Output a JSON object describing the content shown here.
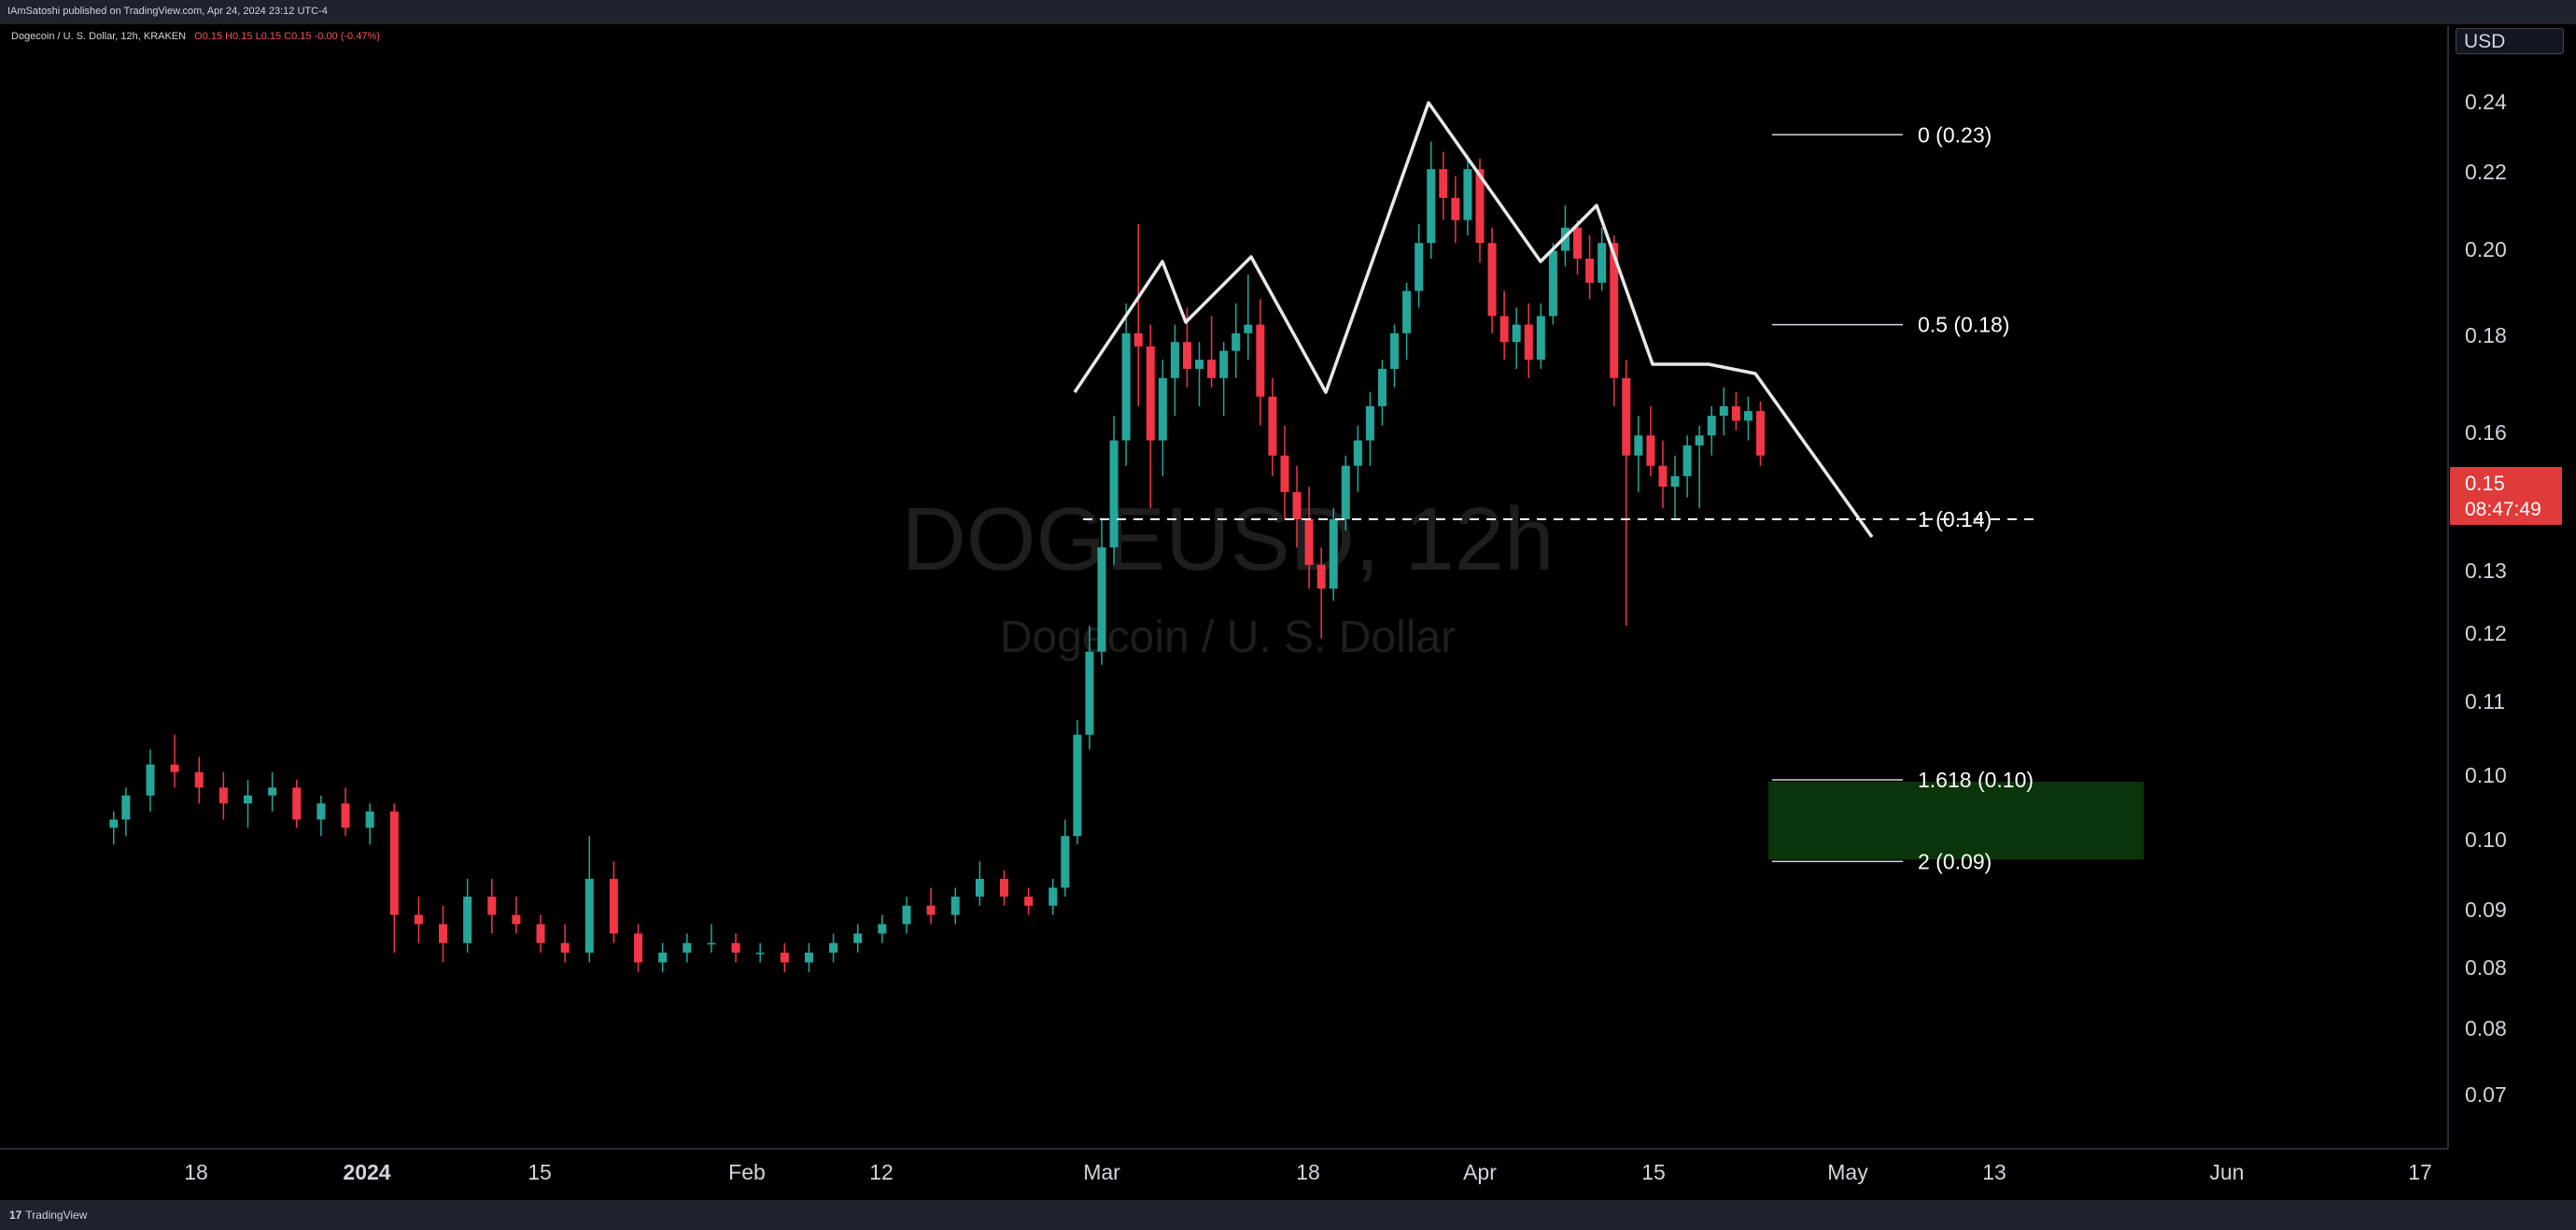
{
  "header": {
    "published": "IAmSatoshi published on TradingView.com, Apr 24, 2024 23:12 UTC-4",
    "symbol_line": "Dogecoin / U. S. Dollar, 12h, KRAKEN",
    "ohlc": "O0.15 H0.15 L0.15 C0.15 -0.00 (-0.47%)"
  },
  "watermark": {
    "line1": "DOGEUSD, 12h",
    "line2": "Dogecoin / U. S. Dollar"
  },
  "price_axis": {
    "currency": "USD",
    "current_price": "0.15",
    "countdown": "08:47:49"
  },
  "footer": {
    "brand": "TradingView",
    "logo": "17"
  },
  "colors": {
    "background": "#000000",
    "up": "#26a69a",
    "down": "#f23645",
    "fib_zone": "#0b3a0b",
    "price_tag": "#e03a3a"
  },
  "chart_data": {
    "type": "candlestick",
    "x_tick_labels": [
      "18",
      "2024",
      "15",
      "Feb",
      "12",
      "Mar",
      "18",
      "Apr",
      "15",
      "May",
      "13",
      "Jun",
      "17"
    ],
    "y_tick_labels": [
      "0.24",
      "0.22",
      "0.20",
      "0.18",
      "0.16",
      "0.15",
      "0.13",
      "0.12",
      "0.11",
      "0.10",
      "0.10",
      "0.09",
      "0.08",
      "0.08",
      "0.07"
    ],
    "y_scale": "log",
    "ylim": [
      0.065,
      0.255
    ],
    "series": [
      {
        "name": "DOGEUSD",
        "candles": [
          [
            "2023-12-11",
            0.094,
            0.096,
            0.092,
            0.095
          ],
          [
            "2023-12-12",
            0.095,
            0.099,
            0.093,
            0.098
          ],
          [
            "2023-12-14",
            0.098,
            0.104,
            0.096,
            0.102
          ],
          [
            "2023-12-16",
            0.102,
            0.106,
            0.099,
            0.101
          ],
          [
            "2023-12-18",
            0.101,
            0.103,
            0.097,
            0.099
          ],
          [
            "2023-12-20",
            0.099,
            0.101,
            0.095,
            0.097
          ],
          [
            "2023-12-22",
            0.097,
            0.1,
            0.094,
            0.098
          ],
          [
            "2023-12-24",
            0.098,
            0.101,
            0.096,
            0.099
          ],
          [
            "2023-12-26",
            0.099,
            0.1,
            0.094,
            0.095
          ],
          [
            "2023-12-28",
            0.095,
            0.098,
            0.093,
            0.097
          ],
          [
            "2023-12-30",
            0.097,
            0.099,
            0.093,
            0.094
          ],
          [
            "2024-01-01",
            0.094,
            0.097,
            0.092,
            0.096
          ],
          [
            "2024-01-03",
            0.096,
            0.097,
            0.08,
            0.084
          ],
          [
            "2024-01-05",
            0.084,
            0.086,
            0.081,
            0.083
          ],
          [
            "2024-01-07",
            0.083,
            0.085,
            0.079,
            0.081
          ],
          [
            "2024-01-09",
            0.081,
            0.088,
            0.08,
            0.086
          ],
          [
            "2024-01-11",
            0.086,
            0.088,
            0.082,
            0.084
          ],
          [
            "2024-01-13",
            0.084,
            0.086,
            0.082,
            0.083
          ],
          [
            "2024-01-15",
            0.083,
            0.084,
            0.08,
            0.081
          ],
          [
            "2024-01-17",
            0.081,
            0.083,
            0.079,
            0.08
          ],
          [
            "2024-01-19",
            0.08,
            0.093,
            0.079,
            0.088
          ],
          [
            "2024-01-21",
            0.088,
            0.09,
            0.081,
            0.082
          ],
          [
            "2024-01-23",
            0.082,
            0.083,
            0.078,
            0.079
          ],
          [
            "2024-01-25",
            0.079,
            0.081,
            0.078,
            0.08
          ],
          [
            "2024-01-27",
            0.08,
            0.082,
            0.079,
            0.081
          ],
          [
            "2024-01-29",
            0.081,
            0.083,
            0.08,
            0.081
          ],
          [
            "2024-01-31",
            0.081,
            0.082,
            0.079,
            0.08
          ],
          [
            "2024-02-02",
            0.08,
            0.081,
            0.079,
            0.08
          ],
          [
            "2024-02-04",
            0.08,
            0.081,
            0.078,
            0.079
          ],
          [
            "2024-02-06",
            0.079,
            0.081,
            0.078,
            0.08
          ],
          [
            "2024-02-08",
            0.08,
            0.082,
            0.079,
            0.081
          ],
          [
            "2024-02-10",
            0.081,
            0.083,
            0.08,
            0.082
          ],
          [
            "2024-02-12",
            0.082,
            0.084,
            0.081,
            0.083
          ],
          [
            "2024-02-14",
            0.083,
            0.086,
            0.082,
            0.085
          ],
          [
            "2024-02-16",
            0.085,
            0.087,
            0.083,
            0.084
          ],
          [
            "2024-02-18",
            0.084,
            0.087,
            0.083,
            0.086
          ],
          [
            "2024-02-20",
            0.086,
            0.09,
            0.085,
            0.088
          ],
          [
            "2024-02-22",
            0.088,
            0.089,
            0.085,
            0.086
          ],
          [
            "2024-02-24",
            0.086,
            0.087,
            0.084,
            0.085
          ],
          [
            "2024-02-26",
            0.085,
            0.088,
            0.084,
            0.087
          ],
          [
            "2024-02-27",
            0.087,
            0.095,
            0.086,
            0.093
          ],
          [
            "2024-02-28",
            0.093,
            0.108,
            0.092,
            0.106
          ],
          [
            "2024-02-29",
            0.106,
            0.122,
            0.104,
            0.118
          ],
          [
            "2024-03-01",
            0.118,
            0.14,
            0.116,
            0.135
          ],
          [
            "2024-03-02",
            0.135,
            0.16,
            0.132,
            0.155
          ],
          [
            "2024-03-03",
            0.155,
            0.185,
            0.15,
            0.178
          ],
          [
            "2024-03-04",
            0.178,
            0.205,
            0.162,
            0.175
          ],
          [
            "2024-03-05",
            0.175,
            0.18,
            0.142,
            0.155
          ],
          [
            "2024-03-06",
            0.155,
            0.172,
            0.148,
            0.168
          ],
          [
            "2024-03-07",
            0.168,
            0.18,
            0.16,
            0.176
          ],
          [
            "2024-03-08",
            0.176,
            0.184,
            0.166,
            0.17
          ],
          [
            "2024-03-09",
            0.17,
            0.176,
            0.162,
            0.172
          ],
          [
            "2024-03-10",
            0.172,
            0.182,
            0.166,
            0.168
          ],
          [
            "2024-03-11",
            0.168,
            0.176,
            0.16,
            0.174
          ],
          [
            "2024-03-12",
            0.174,
            0.185,
            0.168,
            0.178
          ],
          [
            "2024-03-13",
            0.178,
            0.192,
            0.172,
            0.18
          ],
          [
            "2024-03-14",
            0.18,
            0.186,
            0.158,
            0.164
          ],
          [
            "2024-03-15",
            0.164,
            0.168,
            0.148,
            0.152
          ],
          [
            "2024-03-16",
            0.152,
            0.158,
            0.14,
            0.145
          ],
          [
            "2024-03-17",
            0.145,
            0.15,
            0.135,
            0.14
          ],
          [
            "2024-03-18",
            0.14,
            0.146,
            0.128,
            0.132
          ],
          [
            "2024-03-19",
            0.132,
            0.135,
            0.12,
            0.128
          ],
          [
            "2024-03-20",
            0.128,
            0.142,
            0.126,
            0.14
          ],
          [
            "2024-03-21",
            0.14,
            0.152,
            0.138,
            0.15
          ],
          [
            "2024-03-22",
            0.15,
            0.158,
            0.145,
            0.155
          ],
          [
            "2024-03-23",
            0.155,
            0.165,
            0.15,
            0.162
          ],
          [
            "2024-03-24",
            0.162,
            0.172,
            0.158,
            0.17
          ],
          [
            "2024-03-25",
            0.17,
            0.18,
            0.166,
            0.178
          ],
          [
            "2024-03-26",
            0.178,
            0.19,
            0.172,
            0.188
          ],
          [
            "2024-03-27",
            0.188,
            0.205,
            0.184,
            0.2
          ],
          [
            "2024-03-28",
            0.2,
            0.228,
            0.196,
            0.22
          ],
          [
            "2024-03-29",
            0.22,
            0.225,
            0.206,
            0.212
          ],
          [
            "2024-03-30",
            0.212,
            0.218,
            0.2,
            0.206
          ],
          [
            "2024-03-31",
            0.206,
            0.224,
            0.202,
            0.22
          ],
          [
            "2024-04-01",
            0.22,
            0.223,
            0.195,
            0.2
          ],
          [
            "2024-04-02",
            0.2,
            0.204,
            0.178,
            0.182
          ],
          [
            "2024-04-03",
            0.182,
            0.188,
            0.172,
            0.176
          ],
          [
            "2024-04-04",
            0.176,
            0.184,
            0.17,
            0.18
          ],
          [
            "2024-04-05",
            0.18,
            0.185,
            0.168,
            0.172
          ],
          [
            "2024-04-06",
            0.172,
            0.185,
            0.17,
            0.182
          ],
          [
            "2024-04-07",
            0.182,
            0.2,
            0.18,
            0.198
          ],
          [
            "2024-04-08",
            0.198,
            0.21,
            0.194,
            0.204
          ],
          [
            "2024-04-09",
            0.204,
            0.206,
            0.192,
            0.196
          ],
          [
            "2024-04-10",
            0.196,
            0.202,
            0.186,
            0.19
          ],
          [
            "2024-04-11",
            0.19,
            0.204,
            0.188,
            0.2
          ],
          [
            "2024-04-12",
            0.2,
            0.202,
            0.162,
            0.168
          ],
          [
            "2024-04-13",
            0.168,
            0.172,
            0.122,
            0.152
          ],
          [
            "2024-04-14",
            0.152,
            0.16,
            0.145,
            0.156
          ],
          [
            "2024-04-15",
            0.156,
            0.162,
            0.148,
            0.15
          ],
          [
            "2024-04-16",
            0.15,
            0.155,
            0.142,
            0.146
          ],
          [
            "2024-04-17",
            0.146,
            0.152,
            0.14,
            0.148
          ],
          [
            "2024-04-18",
            0.148,
            0.156,
            0.144,
            0.154
          ],
          [
            "2024-04-19",
            0.154,
            0.158,
            0.142,
            0.156
          ],
          [
            "2024-04-20",
            0.156,
            0.162,
            0.152,
            0.16
          ],
          [
            "2024-04-21",
            0.16,
            0.166,
            0.156,
            0.162
          ],
          [
            "2024-04-22",
            0.162,
            0.165,
            0.157,
            0.159
          ],
          [
            "2024-04-23",
            0.159,
            0.164,
            0.155,
            0.161
          ],
          [
            "2024-04-24",
            0.161,
            0.163,
            0.15,
            0.152
          ]
        ]
      }
    ],
    "fibonacci": [
      {
        "label": "0 (0.23)",
        "value": 0.23
      },
      {
        "label": "0.5 (0.18)",
        "value": 0.18
      },
      {
        "label": "1 (0.14)",
        "value": 0.14
      },
      {
        "label": "1.618 (0.10)",
        "value": 0.1
      },
      {
        "label": "2 (0.09)",
        "value": 0.09
      }
    ],
    "target_zone": {
      "from": 0.09,
      "to": 0.1
    },
    "grid": false
  }
}
